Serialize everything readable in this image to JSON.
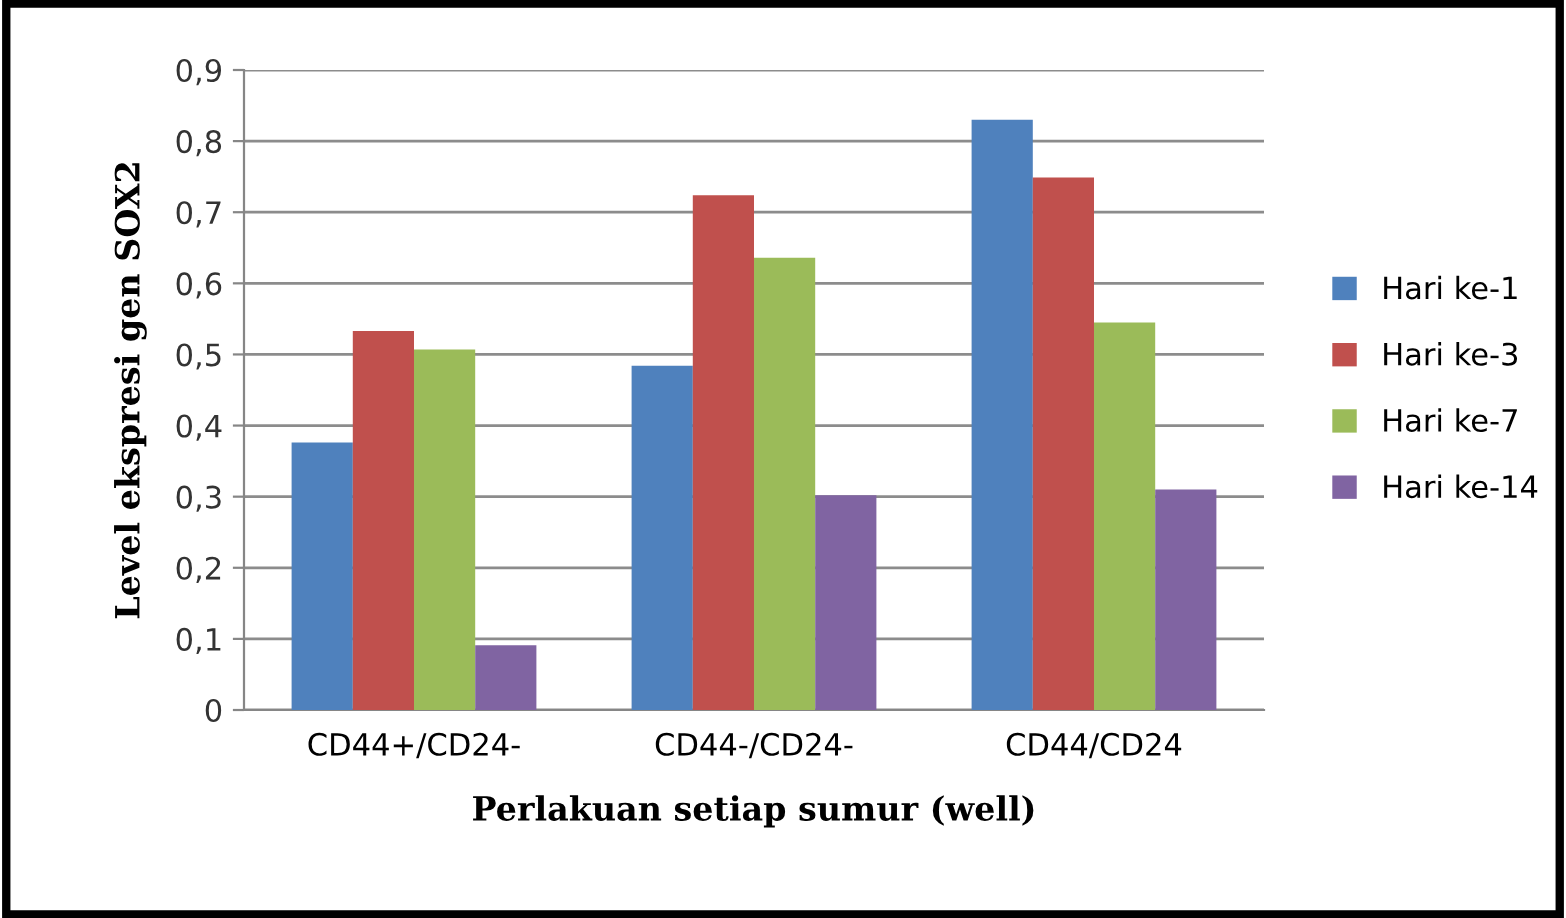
{
  "chart_data": {
    "type": "bar",
    "xlabel": "Perlakuan setiap sumur (well)",
    "ylabel": "Level ekspresi gen SOX2",
    "categories": [
      "CD44+/CD24-",
      "CD44-/CD24-",
      "CD44/CD24"
    ],
    "series": [
      {
        "name": "Hari ke-1",
        "color": "#4f81bd",
        "values": [
          0.376,
          0.484,
          0.83
        ]
      },
      {
        "name": "Hari ke-3",
        "color": "#c0504d",
        "values": [
          0.533,
          0.724,
          0.749
        ]
      },
      {
        "name": "Hari ke-7",
        "color": "#9bbb59",
        "values": [
          0.507,
          0.636,
          0.545
        ]
      },
      {
        "name": "Hari ke-14",
        "color": "#8064a2",
        "values": [
          0.091,
          0.302,
          0.31
        ]
      }
    ],
    "ylim": [
      0,
      0.9
    ],
    "yticks": [
      {
        "value": 0,
        "label": "0"
      },
      {
        "value": 0.1,
        "label": "0,1"
      },
      {
        "value": 0.2,
        "label": "0,2"
      },
      {
        "value": 0.3,
        "label": "0,3"
      },
      {
        "value": 0.4,
        "label": "0,4"
      },
      {
        "value": 0.5,
        "label": "0,5"
      },
      {
        "value": 0.6,
        "label": "0,6"
      },
      {
        "value": 0.7,
        "label": "0,7"
      },
      {
        "value": 0.8,
        "label": "0,8"
      },
      {
        "value": 0.9,
        "label": "0,9"
      }
    ],
    "grid": "y",
    "legend": "right"
  }
}
